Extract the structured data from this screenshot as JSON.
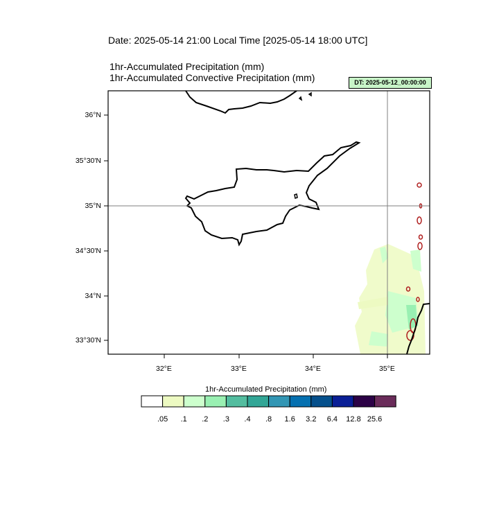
{
  "header": {
    "date_line": "Date: 2025-05-14  21:00 Local Time [2025-05-14  18:00 UTC]",
    "title_1": "1hr-Accumulated Precipitation   (mm)",
    "title_2": "1hr-Accumulated Convective Precipitation   (mm)",
    "dt_badge": "DT: 2025-05-12_00:00:00"
  },
  "map": {
    "lat_labels": [
      "36°N",
      "35°30'N",
      "35°N",
      "34°30'N",
      "34°N",
      "33°30'N"
    ],
    "lon_labels": [
      "32°E",
      "33°E",
      "34°E",
      "35°E"
    ],
    "colors": {
      "coast": "#000000",
      "grid": "#7f7f7f",
      "convective_contour": "#b02020"
    }
  },
  "colorbar": {
    "title": "1hr-Accumulated Precipitation  (mm)",
    "labels": [
      ".05",
      ".1",
      ".2",
      ".3",
      ".4",
      ".8",
      "1.6",
      "3.2",
      "6.4",
      "12.8",
      "25.6"
    ],
    "colors": [
      "#ffffff",
      "#edfac2",
      "#cdffcd",
      "#99f0b2",
      "#53bd9f",
      "#32a696",
      "#3296b4",
      "#0570b0",
      "#05508c",
      "#0a1f96",
      "#2c0246",
      "#6a2c5a"
    ]
  }
}
